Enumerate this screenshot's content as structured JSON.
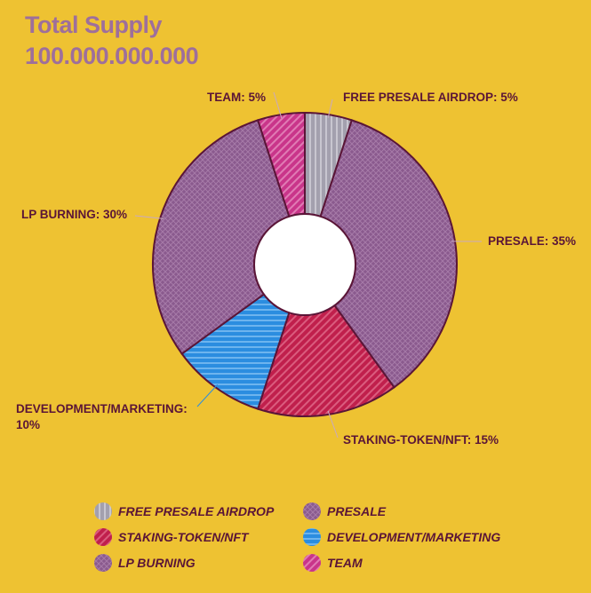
{
  "header": {
    "title": "Total Supply",
    "supply": "100.000.000.000"
  },
  "chart_data": {
    "type": "pie",
    "donut": true,
    "categories": [
      "FREE PRESALE AIRDROP",
      "PRESALE",
      "STAKING-TOKEN/NFT",
      "DEVELOPMENT/MARKETING",
      "LP BURNING",
      "TEAM"
    ],
    "values": [
      5,
      35,
      15,
      10,
      30,
      5
    ],
    "slice_labels": [
      "FREE PRESALE AIRDROP: 5%",
      "PRESALE: 35%",
      "STAKING-TOKEN/NFT: 15%",
      [
        "DEVELOPMENT/MARKETING:",
        "10%"
      ],
      "LP BURNING: 30%",
      "TEAM: 5%"
    ],
    "colors": [
      "#A3A0AE",
      "#8A5A8E",
      "#C01F4C",
      "#2B8DE0",
      "#8A5A8E",
      "#C9358A"
    ],
    "patterns": [
      "vertical-stripes",
      "crosshatch",
      "diagonal-stripes",
      "horizontal-stripes",
      "crosshatch",
      "diagonal-stripes"
    ],
    "outline_color": "#5A1537",
    "legend_placement": "bottom"
  },
  "legend": {
    "items": [
      "FREE PRESALE AIRDROP",
      "PRESALE",
      "STAKING-TOKEN/NFT",
      "DEVELOPMENT/MARKETING",
      "LP BURNING",
      "TEAM"
    ]
  }
}
